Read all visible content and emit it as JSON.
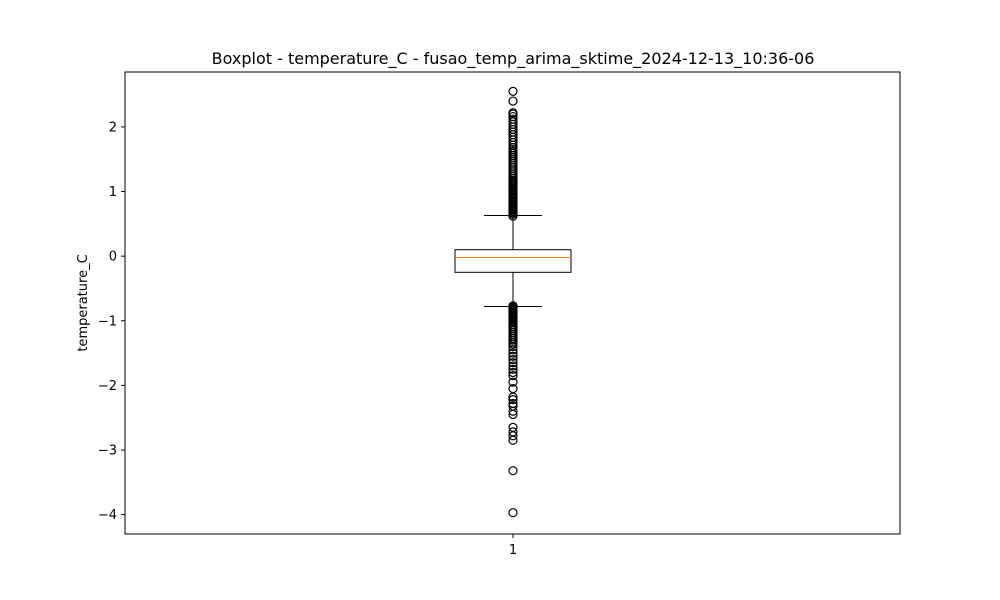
{
  "chart_data": {
    "type": "box",
    "title": "Boxplot - temperature_C - fusao_temp_arima_sktime_2024-12-13_10:36-06",
    "xlabel": "",
    "ylabel": "temperature_C",
    "categories": [
      "1"
    ],
    "ylim": [
      -4.3,
      2.85
    ],
    "yticks": [
      -4,
      -3,
      -2,
      -1,
      0,
      1,
      2
    ],
    "ytick_labels": [
      "−4",
      "−3",
      "−2",
      "−1",
      "0",
      "1",
      "2"
    ],
    "grid": false,
    "legend": "none",
    "boxes": [
      {
        "category": "1",
        "whisker_low": -0.78,
        "q1": -0.25,
        "median": -0.02,
        "q3": 0.1,
        "whisker_high": 0.63,
        "outliers_high": [
          0.62,
          0.65,
          0.67,
          0.69,
          0.71,
          0.73,
          0.75,
          0.77,
          0.79,
          0.81,
          0.83,
          0.85,
          0.87,
          0.89,
          0.91,
          0.93,
          0.95,
          0.97,
          0.99,
          1.01,
          1.03,
          1.05,
          1.07,
          1.09,
          1.11,
          1.13,
          1.15,
          1.17,
          1.2,
          1.23,
          1.26,
          1.29,
          1.32,
          1.35,
          1.38,
          1.41,
          1.44,
          1.47,
          1.5,
          1.53,
          1.56,
          1.59,
          1.62,
          1.65,
          1.68,
          1.72,
          1.76,
          1.8,
          1.84,
          1.88,
          1.92,
          1.96,
          2.0,
          2.04,
          2.08,
          2.12,
          2.16,
          2.2,
          2.22,
          2.4,
          2.55
        ],
        "outliers_low": [
          -0.77,
          -0.79,
          -0.81,
          -0.83,
          -0.85,
          -0.87,
          -0.89,
          -0.91,
          -0.93,
          -0.95,
          -0.97,
          -0.99,
          -1.01,
          -1.03,
          -1.06,
          -1.09,
          -1.12,
          -1.15,
          -1.18,
          -1.21,
          -1.24,
          -1.27,
          -1.3,
          -1.33,
          -1.36,
          -1.4,
          -1.45,
          -1.5,
          -1.55,
          -1.6,
          -1.65,
          -1.7,
          -1.75,
          -1.8,
          -1.85,
          -1.95,
          -2.05,
          -2.18,
          -2.22,
          -2.28,
          -2.32,
          -2.4,
          -2.45,
          -2.65,
          -2.72,
          -2.78,
          -2.85,
          -3.32,
          -3.97
        ]
      }
    ],
    "colors": {
      "box": "#000000",
      "median": "#ff7f0e",
      "outlier": "#000000",
      "frame": "#000000"
    }
  }
}
